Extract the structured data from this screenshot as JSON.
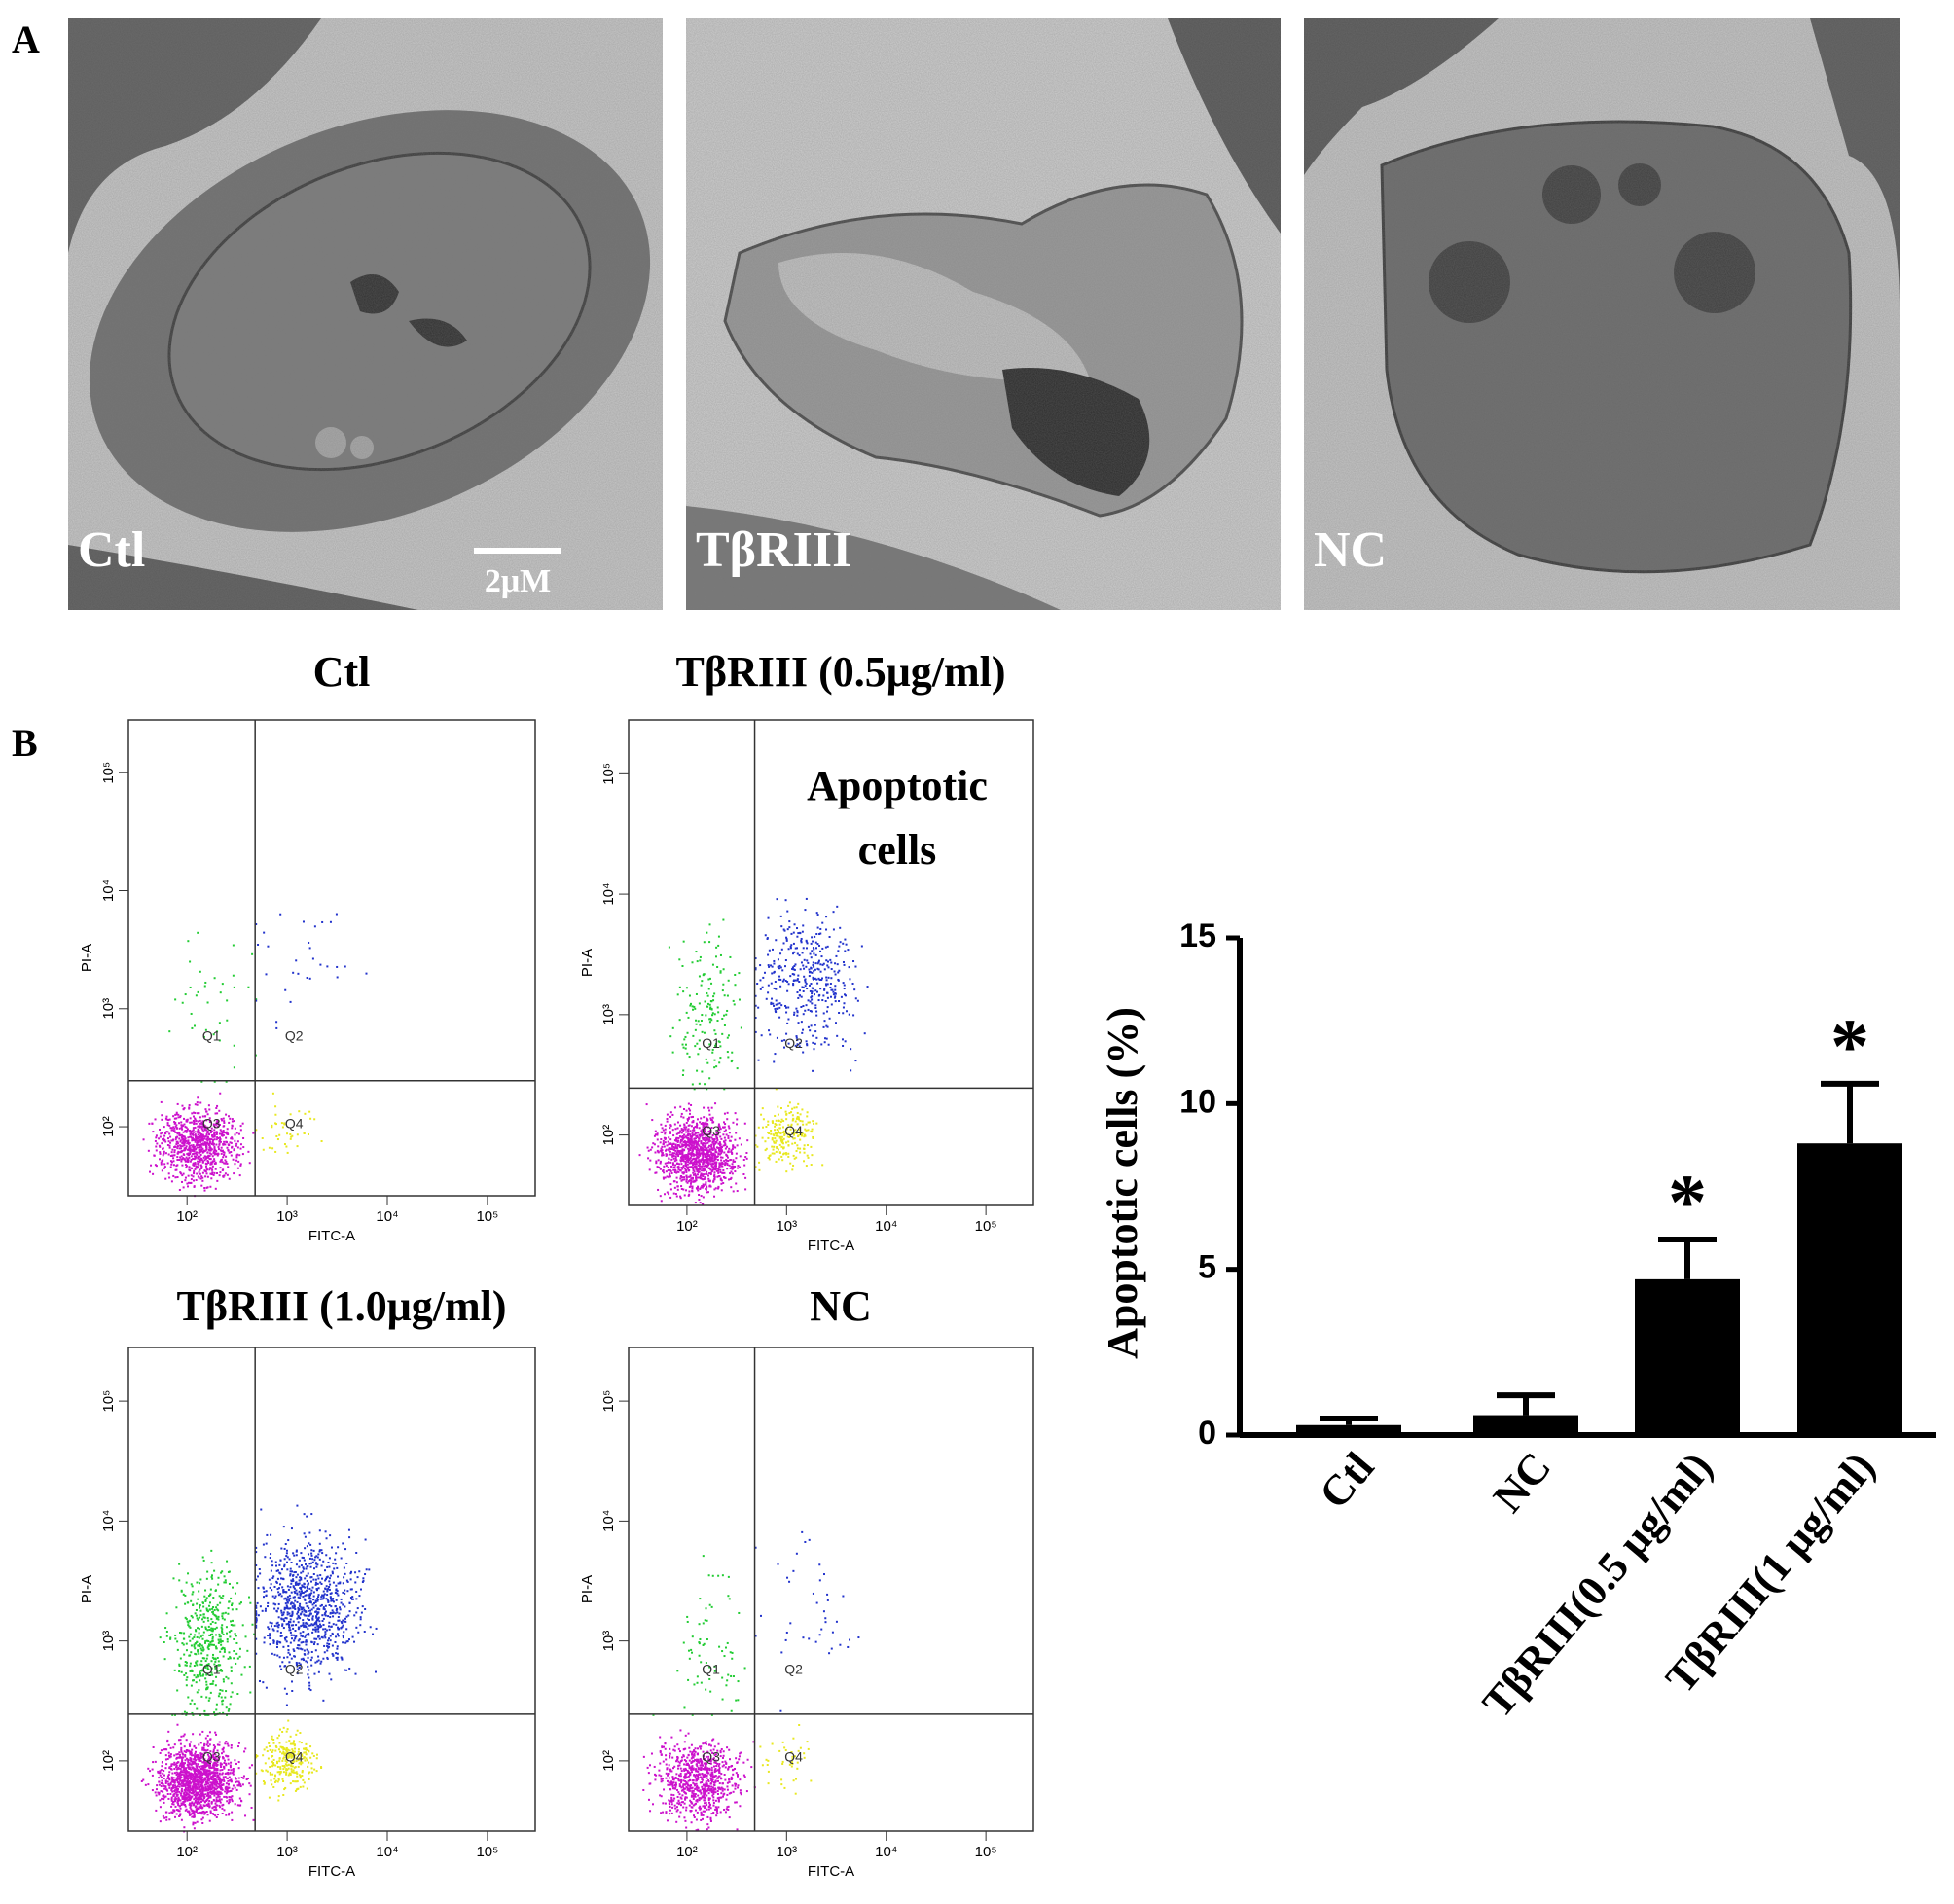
{
  "panel_a": {
    "label": "A",
    "images": [
      {
        "label": "Ctl"
      },
      {
        "label": "TβRIII"
      },
      {
        "label": "NC"
      }
    ],
    "scale_bar": "2μM"
  },
  "panel_b": {
    "label": "B",
    "flow": {
      "xlabel": "FITC-A",
      "ylabel": "PI-A",
      "log": true,
      "xlim": [
        26,
        300000
      ],
      "ylim": [
        26,
        280000
      ],
      "xticks": [
        {
          "value": 100,
          "label": "10²"
        },
        {
          "value": 1000,
          "label": "10³"
        },
        {
          "value": 10000,
          "label": "10⁴"
        },
        {
          "value": 100000,
          "label": "10⁵"
        }
      ],
      "yticks": [
        {
          "value": 100,
          "label": "10²"
        },
        {
          "value": 1000,
          "label": "10³"
        },
        {
          "value": 10000,
          "label": "10⁴"
        },
        {
          "value": 100000,
          "label": "10⁵"
        }
      ],
      "annotation": [
        "Apoptotic",
        "cells"
      ],
      "plots": [
        {
          "title": "Ctl",
          "quadrants": [
            "Q1",
            "Q2",
            "Q3",
            "Q4"
          ]
        },
        {
          "title": "TβRIII (0.5μg/ml)",
          "quadrants": [
            "Q1",
            "Q2",
            "Q3",
            "Q4"
          ]
        },
        {
          "title": "TβRIII (1.0μg/ml)",
          "quadrants": [
            "Q1",
            "Q2",
            "Q3",
            "Q4"
          ]
        },
        {
          "title": "NC",
          "quadrants": [
            "Q1",
            "Q2",
            "Q3",
            "Q4"
          ]
        }
      ]
    }
  },
  "chart_data": {
    "type": "bar",
    "ylabel": "Apoptotic cells (%)",
    "categories": [
      "Ctl",
      "NC",
      "TβRIII(0.5 μg/ml)",
      "TβRIII(1 μg/ml)"
    ],
    "values": [
      0.3,
      0.6,
      4.7,
      8.8
    ],
    "errors": [
      0.2,
      0.6,
      1.2,
      1.8
    ],
    "significance": [
      null,
      null,
      "*",
      "*"
    ],
    "color": "#000000",
    "ylim": [
      0,
      15
    ],
    "yticks": [
      0,
      5,
      10,
      15
    ]
  }
}
